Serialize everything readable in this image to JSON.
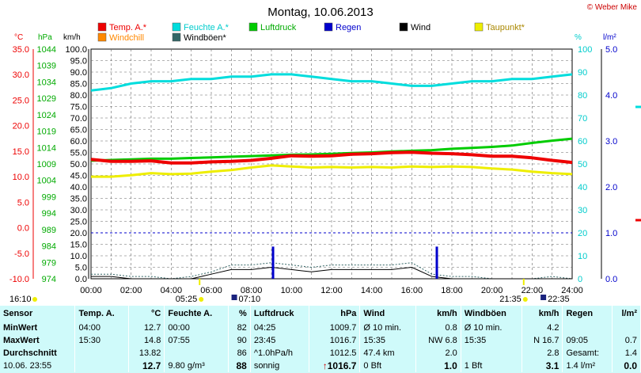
{
  "title": "Montag, 10.06.2013",
  "credit": "© Weber Mike",
  "left_axes": {
    "temp_unit": "°C",
    "pressure_unit": "hPa",
    "wind_unit": "km/h",
    "temp_ticks": [
      "35.0",
      "30.0",
      "25.0",
      "20.0",
      "15.0",
      "10.0",
      "5.0",
      "0.0",
      "-5.0",
      "-10.0"
    ],
    "pressure_ticks": [
      "1044",
      "1039",
      "1034",
      "1029",
      "1024",
      "1019",
      "1014",
      "1009",
      "1004",
      "999",
      "994",
      "989",
      "984",
      "979",
      "974"
    ],
    "wind_ticks": [
      "100.0",
      "95.0",
      "90.0",
      "85.0",
      "80.0",
      "75.0",
      "70.0",
      "65.0",
      "60.0",
      "55.0",
      "50.0",
      "45.0",
      "40.0",
      "35.0",
      "30.0",
      "25.0",
      "20.0",
      "15.0",
      "10.0",
      "5.0",
      "0.0"
    ]
  },
  "right_axes": {
    "humidity_unit": "%",
    "rain_unit": "l/m²",
    "humidity_ticks": [
      "100",
      "90",
      "80",
      "70",
      "60",
      "50",
      "40",
      "30",
      "20",
      "10",
      "0"
    ],
    "rain_ticks": [
      "5.0",
      "4.0",
      "3.0",
      "2.0",
      "1.0",
      "0.0"
    ]
  },
  "x_ticks": [
    "00:00",
    "02:00",
    "04:00",
    "06:00",
    "08:00",
    "10:00",
    "12:00",
    "14:00",
    "16:00",
    "18:00",
    "20:00",
    "22:00",
    "24:00"
  ],
  "legend": [
    {
      "label": "Temp. A.*",
      "color": "#ee0000"
    },
    {
      "label": "Feuchte A.*",
      "color": "#00dddd"
    },
    {
      "label": "Luftdruck",
      "color": "#00cc00"
    },
    {
      "label": "Regen",
      "color": "#0000cc"
    },
    {
      "label": "Wind",
      "color": "#000000"
    },
    {
      "label": "Taupunkt*",
      "color": "#eeee00"
    },
    {
      "label": "Windchill",
      "color": "#ff8800"
    },
    {
      "label": "Windböen*",
      "color": "#336666"
    }
  ],
  "sun_markers": {
    "left": "16:10",
    "sunrise": "05:25",
    "sunset": "21:35",
    "moonset": "07:10",
    "moonrise": "22:35"
  },
  "chart_data": {
    "type": "line",
    "xlabel": "",
    "xlim": [
      "00:00",
      "24:00"
    ],
    "series": [
      {
        "name": "Temp. A.*",
        "axis": "°C",
        "ylim": [
          -10,
          35
        ],
        "x": [
          0,
          1,
          2,
          3,
          4,
          5,
          6,
          7,
          8,
          9,
          10,
          11,
          12,
          13,
          14,
          15,
          16,
          17,
          18,
          19,
          20,
          21,
          22,
          23,
          24
        ],
        "values": [
          13.4,
          13.0,
          13.0,
          13.1,
          12.7,
          12.7,
          12.9,
          13.0,
          13.2,
          13.6,
          14.1,
          14.0,
          14.1,
          14.4,
          14.5,
          14.7,
          14.8,
          14.6,
          14.5,
          14.3,
          14.0,
          14.0,
          13.7,
          13.2,
          12.8
        ]
      },
      {
        "name": "Feuchte A.*",
        "axis": "%",
        "ylim": [
          0,
          100
        ],
        "x": [
          0,
          1,
          2,
          3,
          4,
          5,
          6,
          7,
          8,
          9,
          10,
          11,
          12,
          13,
          14,
          15,
          16,
          17,
          18,
          19,
          20,
          21,
          22,
          23,
          24
        ],
        "values": [
          82,
          83,
          85,
          86,
          86,
          87,
          87,
          88,
          88,
          89,
          89,
          88,
          87,
          86,
          86,
          85,
          84,
          84,
          85,
          86,
          86,
          87,
          87,
          88,
          89
        ]
      },
      {
        "name": "Luftdruck",
        "axis": "hPa",
        "ylim": [
          974,
          1044
        ],
        "x": [
          0,
          1,
          2,
          3,
          4,
          5,
          6,
          7,
          8,
          9,
          10,
          11,
          12,
          13,
          14,
          15,
          16,
          17,
          18,
          19,
          20,
          21,
          22,
          23,
          24
        ],
        "values": [
          1010.0,
          1010.2,
          1010.4,
          1010.6,
          1010.6,
          1010.8,
          1011.0,
          1011.2,
          1011.4,
          1011.6,
          1011.8,
          1011.9,
          1012.1,
          1012.3,
          1012.5,
          1012.8,
          1013.0,
          1013.2,
          1013.6,
          1013.9,
          1014.2,
          1014.6,
          1015.4,
          1016.1,
          1016.7
        ]
      },
      {
        "name": "Taupunkt*",
        "axis": "°C",
        "ylim": [
          -10,
          35
        ],
        "x": [
          0,
          1,
          2,
          3,
          4,
          5,
          6,
          7,
          8,
          9,
          10,
          11,
          12,
          13,
          14,
          15,
          16,
          17,
          18,
          19,
          20,
          21,
          22,
          23,
          24
        ],
        "values": [
          10.0,
          10.0,
          10.3,
          10.7,
          10.5,
          10.6,
          11.0,
          11.3,
          11.8,
          12.2,
          12.0,
          11.8,
          11.9,
          11.8,
          11.9,
          11.8,
          12.0,
          11.9,
          12.0,
          11.9,
          11.6,
          11.4,
          11.0,
          10.7,
          10.5
        ]
      },
      {
        "name": "Wind",
        "axis": "km/h",
        "ylim": [
          0,
          100
        ],
        "x": [
          0,
          1,
          2,
          3,
          4,
          5,
          6,
          7,
          8,
          9,
          10,
          11,
          12,
          13,
          14,
          15,
          16,
          17,
          18,
          19,
          20,
          21,
          22,
          23,
          24
        ],
        "values": [
          1,
          1,
          0,
          0,
          0,
          0,
          2,
          4,
          4,
          5,
          4,
          3,
          4,
          4,
          4,
          4,
          5,
          1,
          0,
          0,
          0,
          0,
          0,
          0,
          0
        ]
      },
      {
        "name": "Windböen*",
        "axis": "km/h",
        "ylim": [
          0,
          100
        ],
        "x": [
          0,
          1,
          2,
          3,
          4,
          5,
          6,
          7,
          8,
          9,
          10,
          11,
          12,
          13,
          14,
          15,
          16,
          17,
          18,
          19,
          20,
          21,
          22,
          23,
          24
        ],
        "values": [
          2,
          2,
          1,
          1,
          0,
          1,
          3,
          6,
          6,
          7,
          6,
          5,
          6,
          6,
          6,
          6,
          7,
          2,
          1,
          1,
          0,
          0,
          0,
          1,
          0
        ]
      },
      {
        "name": "Regen",
        "axis": "l/m²",
        "ylim": [
          0,
          5
        ],
        "type": "bar",
        "x": [
          9.08,
          17.25
        ],
        "values": [
          0.7,
          0.7
        ]
      }
    ],
    "rain_reference_l": 1.0
  },
  "table": {
    "headers": [
      "Sensor",
      "Temp. A.",
      "°C",
      "Feuchte A.",
      "%",
      "Luftdruck",
      "hPa",
      "Wind",
      "km/h",
      "Windböen",
      "km/h",
      "Regen",
      "l/m²"
    ],
    "rows": [
      {
        "label": "MinWert",
        "cells": [
          "04:00",
          "12.7",
          "00:00",
          "82",
          "04:25",
          "1009.7",
          "Ø 10 min.",
          "0.8",
          "Ø 10 min.",
          "4.2",
          "",
          ""
        ]
      },
      {
        "label": "MaxWert",
        "cells": [
          "15:30",
          "14.8",
          "07:55",
          "90",
          "23:45",
          "1016.7",
          "15:35",
          "NW 6.8",
          "15:35",
          "N 16.7",
          "09:05",
          "0.7"
        ]
      },
      {
        "label": "Durchschnitt",
        "cells": [
          "",
          "13.82",
          "",
          "86",
          "^1.0hPa/h",
          "1012.5",
          "47.4 km",
          "2.0",
          "",
          "2.8",
          "Gesamt:",
          "1.4"
        ]
      }
    ],
    "last": {
      "label": "10.06. 23:55",
      "cells": [
        "",
        "12.7",
        "9.80 g/m³",
        "88",
        "sonnig",
        "1016.7",
        "0 Bft",
        "1.0",
        "1 Bft",
        "3.1",
        "1.4 l/m²",
        "0.0"
      ]
    }
  }
}
